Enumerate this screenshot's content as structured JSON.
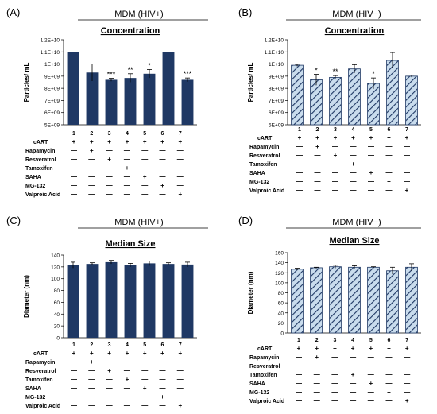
{
  "panel_labels": [
    "(A)",
    "(B)",
    "(C)",
    "(D)"
  ],
  "treatments": [
    "cART",
    "Rapamycin",
    "Resveratrol",
    "Tamoxifen",
    "SAHA",
    "MG-132",
    "Valproic Acid"
  ],
  "lane_numbers": [
    "1",
    "2",
    "3",
    "4",
    "5",
    "6",
    "7"
  ],
  "colors": {
    "solid_bar": "#1f3864",
    "hatch_fill": "#c9dced",
    "hatch_stroke": "#1f3864",
    "rule": "#000000"
  },
  "chart_data": [
    {
      "type": "bar",
      "panel": "(A)",
      "header": "MDM (HIV+)",
      "title": "Concentration",
      "ylabel": "Particles/ mL",
      "style": "solid",
      "categories": [
        "1",
        "2",
        "3",
        "4",
        "5",
        "6",
        "7"
      ],
      "values": [
        11000000000,
        9300000000,
        8700000000,
        8850000000,
        9200000000,
        11000000000,
        8700000000
      ],
      "errors": [
        0,
        700000000,
        120000000,
        350000000,
        350000000,
        0,
        150000000
      ],
      "significance": [
        "",
        "",
        "***",
        "**",
        "*",
        "",
        "***"
      ],
      "ylim": [
        5000000000,
        12000000000
      ],
      "ytick_labels": [
        "5E+09",
        "6E+09",
        "7E+09",
        "8E+09",
        "9E+09",
        "1E+10",
        "1.1E+10",
        "1.2E+10"
      ],
      "signs": [
        [
          "+",
          "+",
          "+",
          "+",
          "+",
          "+",
          "+"
        ],
        [
          "—",
          "+",
          "—",
          "—",
          "—",
          "—",
          "—"
        ],
        [
          "—",
          "—",
          "+",
          "—",
          "—",
          "—",
          "—"
        ],
        [
          "—",
          "—",
          "—",
          "+",
          "—",
          "—",
          "—"
        ],
        [
          "—",
          "—",
          "—",
          "—",
          "+",
          "—",
          "—"
        ],
        [
          "—",
          "—",
          "—",
          "—",
          "—",
          "+",
          "—"
        ],
        [
          "—",
          "—",
          "—",
          "—",
          "—",
          "—",
          "+"
        ]
      ]
    },
    {
      "type": "bar",
      "panel": "(B)",
      "header": "MDM (HIV−)",
      "title": "Concentration",
      "ylabel": "Particles/ mL",
      "style": "hatched",
      "categories": [
        "1",
        "2",
        "3",
        "4",
        "5",
        "6",
        "7"
      ],
      "values": [
        9900000000,
        8700000000,
        8900000000,
        9600000000,
        8400000000,
        10300000000,
        9000000000
      ],
      "errors": [
        80000000,
        450000000,
        150000000,
        350000000,
        450000000,
        650000000,
        80000000
      ],
      "significance": [
        "",
        "*",
        "**",
        "",
        "*",
        "",
        ""
      ],
      "ylim": [
        5000000000,
        12000000000
      ],
      "ytick_labels": [
        "5E+09",
        "6E+09",
        "7E+09",
        "8E+09",
        "9E+09",
        "1E+10",
        "1.1E+10",
        "1.2E+10"
      ],
      "signs": [
        [
          "+",
          "+",
          "+",
          "+",
          "+",
          "+",
          "+"
        ],
        [
          "—",
          "+",
          "—",
          "—",
          "—",
          "—",
          "—"
        ],
        [
          "—",
          "—",
          "+",
          "—",
          "—",
          "—",
          "—"
        ],
        [
          "—",
          "—",
          "—",
          "+",
          "—",
          "—",
          "—"
        ],
        [
          "—",
          "—",
          "—",
          "—",
          "+",
          "—",
          "—"
        ],
        [
          "—",
          "—",
          "—",
          "—",
          "—",
          "+",
          "—"
        ],
        [
          "—",
          "—",
          "—",
          "—",
          "—",
          "—",
          "+"
        ]
      ]
    },
    {
      "type": "bar",
      "panel": "(C)",
      "header": "MDM (HIV+)",
      "title": "Median Size",
      "ylabel": "Diameter (nm)",
      "style": "solid",
      "categories": [
        "1",
        "2",
        "3",
        "4",
        "5",
        "6",
        "7"
      ],
      "values": [
        123,
        125,
        128,
        123,
        126,
        125,
        124
      ],
      "errors": [
        5,
        2,
        3,
        3,
        4,
        2,
        4
      ],
      "significance": [
        "",
        "",
        "",
        "",
        "",
        "",
        ""
      ],
      "ylim": [
        0,
        140
      ],
      "ytick_labels": [
        "0",
        "20",
        "40",
        "60",
        "80",
        "100",
        "120",
        "140"
      ],
      "signs": [
        [
          "+",
          "+",
          "+",
          "+",
          "+",
          "+",
          "+"
        ],
        [
          "—",
          "+",
          "—",
          "—",
          "—",
          "—",
          "—"
        ],
        [
          "—",
          "—",
          "+",
          "—",
          "—",
          "—",
          "—"
        ],
        [
          "—",
          "—",
          "—",
          "+",
          "—",
          "—",
          "—"
        ],
        [
          "—",
          "—",
          "—",
          "—",
          "+",
          "—",
          "—"
        ],
        [
          "—",
          "—",
          "—",
          "—",
          "—",
          "+",
          "—"
        ],
        [
          "—",
          "—",
          "—",
          "—",
          "—",
          "—",
          "+"
        ]
      ]
    },
    {
      "type": "bar",
      "panel": "(D)",
      "header": "MDM (HIV−)",
      "title": "Median Size",
      "ylabel": "Diameter (nm)",
      "style": "hatched",
      "categories": [
        "1",
        "2",
        "3",
        "4",
        "5",
        "6",
        "7"
      ],
      "values": [
        127,
        130,
        132,
        131,
        131,
        124,
        131
      ],
      "errors": [
        2,
        1,
        3,
        3,
        1,
        7,
        7
      ],
      "significance": [
        "",
        "",
        "",
        "",
        "",
        "",
        ""
      ],
      "ylim": [
        0,
        160
      ],
      "ytick_labels": [
        "0",
        "20",
        "40",
        "60",
        "80",
        "100",
        "120",
        "140",
        "160"
      ],
      "signs": [
        [
          "+",
          "+",
          "+",
          "+",
          "+",
          "+",
          "+"
        ],
        [
          "—",
          "+",
          "—",
          "—",
          "—",
          "—",
          "—"
        ],
        [
          "—",
          "—",
          "+",
          "—",
          "—",
          "—",
          "—"
        ],
        [
          "—",
          "—",
          "—",
          "+",
          "—",
          "—",
          "—"
        ],
        [
          "—",
          "—",
          "—",
          "—",
          "+",
          "—",
          "—"
        ],
        [
          "—",
          "—",
          "—",
          "—",
          "—",
          "+",
          "—"
        ],
        [
          "—",
          "—",
          "—",
          "—",
          "—",
          "—",
          "+"
        ]
      ]
    }
  ]
}
